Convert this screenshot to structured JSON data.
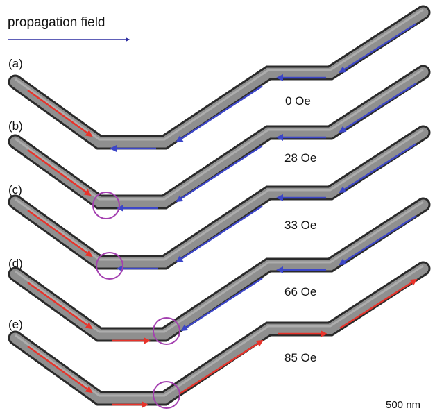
{
  "header": {
    "title": "propagation field",
    "arrow_color": "#2c2ca0"
  },
  "panels": [
    {
      "label": "(a)",
      "field": "0 Oe",
      "state": "a"
    },
    {
      "label": "(b)",
      "field": "28 Oe",
      "state": "b"
    },
    {
      "label": "(c)",
      "field": "33 Oe",
      "state": "c"
    },
    {
      "label": "(d)",
      "field": "66 Oe",
      "state": "d"
    },
    {
      "label": "(e)",
      "field": "85 Oe",
      "state": "e"
    }
  ],
  "scale_bar": {
    "label": "500 nm"
  },
  "colors": {
    "wire_edge": "#2a2a2a",
    "wire_fill": "#8f8f8f",
    "wire_highlight": "#b9b9b9",
    "arrow_red": "#e8332a",
    "arrow_blue": "#3c46c8",
    "circle": "#a43fb0"
  }
}
